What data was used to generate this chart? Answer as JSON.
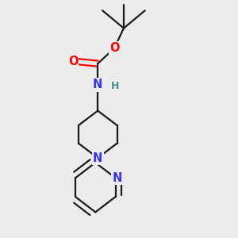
{
  "bg_color": "#ececec",
  "bond_color": "#1a1a1a",
  "N_color": "#3333ff",
  "O_color": "#ff0000",
  "H_color": "#4a9090",
  "line_width": 1.6,
  "font_size_atom": 10.5,
  "figsize": [
    3.0,
    3.0
  ],
  "dpi": 100,
  "xlim": [
    0.0,
    1.0
  ],
  "ylim": [
    0.0,
    1.0
  ]
}
